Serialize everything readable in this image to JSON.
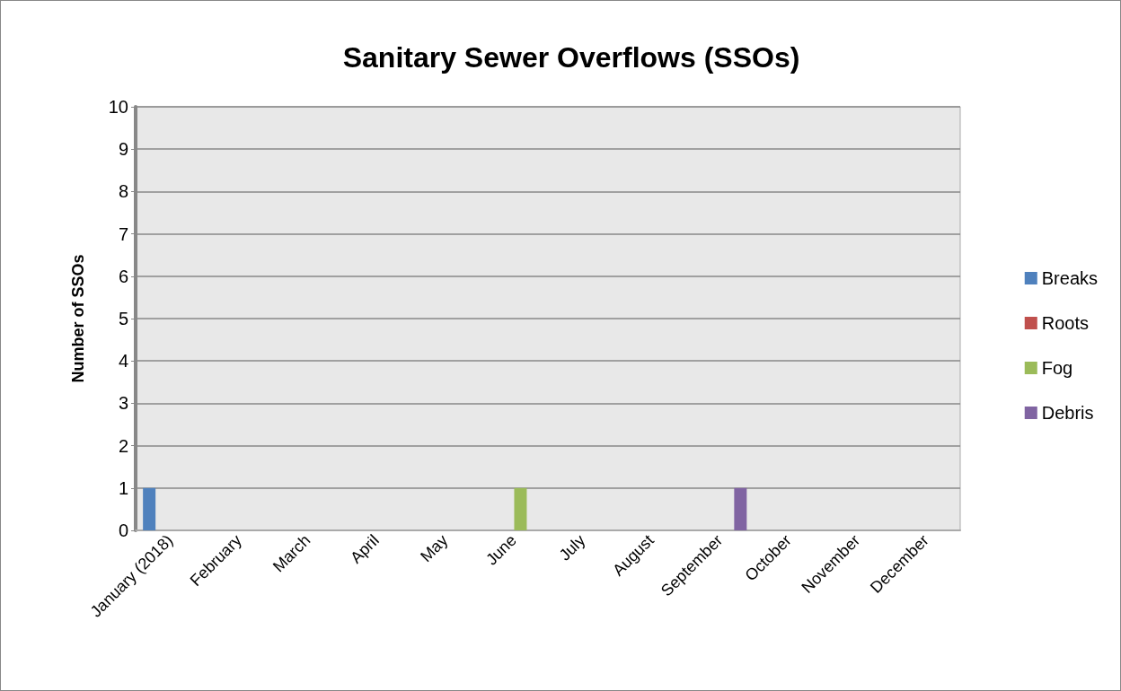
{
  "chart_data": {
    "type": "bar",
    "title": "Sanitary Sewer Overflows (SSOs)",
    "ylabel": "Number of SSOs",
    "categories": [
      "January (2018)",
      "February",
      "March",
      "April",
      "May",
      "June",
      "July",
      "August",
      "September",
      "October",
      "November",
      "December"
    ],
    "series": [
      {
        "name": "Breaks",
        "color": "#4f81bd",
        "values": [
          1,
          0,
          0,
          0,
          0,
          0,
          0,
          0,
          0,
          0,
          0,
          0
        ]
      },
      {
        "name": "Roots",
        "color": "#c0504d",
        "values": [
          0,
          0,
          0,
          0,
          0,
          0,
          0,
          0,
          0,
          0,
          0,
          0
        ]
      },
      {
        "name": "Fog",
        "color": "#9bbb59",
        "values": [
          0,
          0,
          0,
          0,
          0,
          1,
          0,
          0,
          0,
          0,
          0,
          0
        ]
      },
      {
        "name": "Debris",
        "color": "#8064a2",
        "values": [
          0,
          0,
          0,
          0,
          0,
          0,
          0,
          0,
          1,
          0,
          0,
          0
        ]
      }
    ],
    "ylim": [
      0,
      10
    ],
    "yticks": [
      0,
      1,
      2,
      3,
      4,
      5,
      6,
      7,
      8,
      9,
      10
    ],
    "grid": "y",
    "legend": "right"
  }
}
